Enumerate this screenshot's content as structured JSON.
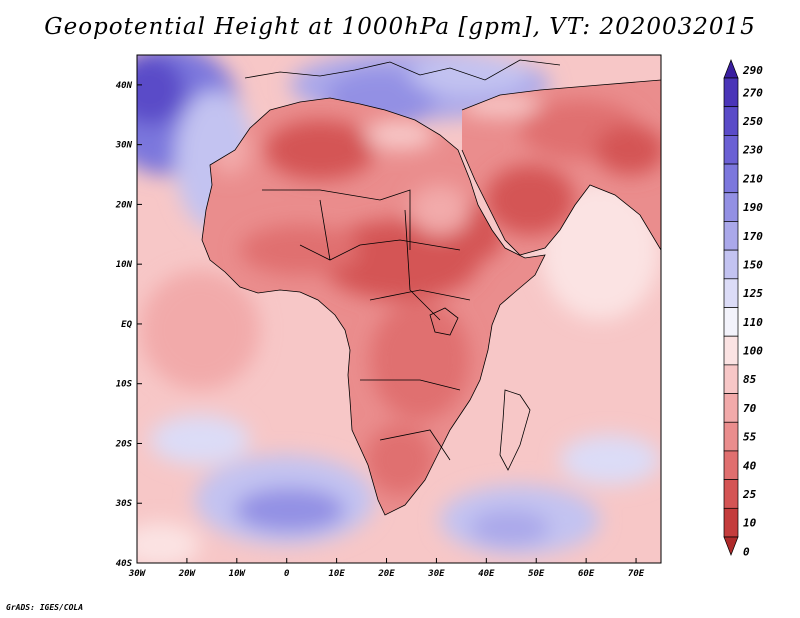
{
  "title": "Geopotential Height at 1000hPa [gpm], VT: 2020032015",
  "credit": "GrADS: IGES/COLA",
  "axes": {
    "lon_labels": [
      "30W",
      "20W",
      "10W",
      "0",
      "10E",
      "20E",
      "30E",
      "40E",
      "50E",
      "60E",
      "70E"
    ],
    "lat_labels": [
      "40N",
      "30N",
      "20N",
      "10N",
      "EQ",
      "10S",
      "20S",
      "30S",
      "40S"
    ],
    "lon_range": [
      -30,
      75
    ],
    "lat_range": [
      -40,
      45
    ]
  },
  "colorbar": {
    "levels": [
      "290",
      "270",
      "250",
      "230",
      "210",
      "190",
      "170",
      "150",
      "125",
      "110",
      "100",
      "85",
      "70",
      "55",
      "40",
      "25",
      "10",
      "0"
    ],
    "colors": [
      "#3a1fa0",
      "#4a35b8",
      "#5a4bc8",
      "#6b60d4",
      "#7c77dd",
      "#9390e4",
      "#aaa8ea",
      "#c3c3f1",
      "#dcdcf7",
      "#f3f3fb",
      "#fbe3e3",
      "#f7c7c7",
      "#f2aaaa",
      "#ea8d8d",
      "#e06f6f",
      "#d45454",
      "#c43c3c",
      "#ae2a2a"
    ]
  },
  "fields": {
    "ocean_base": "#f7c7c7",
    "land_base": "#ea8d8d"
  }
}
